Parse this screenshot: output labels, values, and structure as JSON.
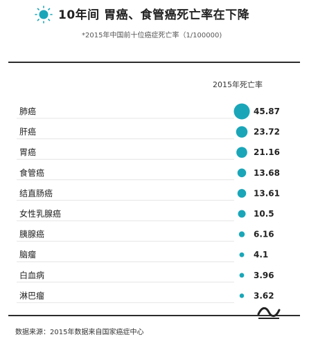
{
  "header": {
    "title": "10年间 胃癌、食管癌死亡率在下降",
    "subtitle": "*2015年中国前十位癌症死亡率（1/100000)"
  },
  "table": {
    "column_header": "2015年死亡率"
  },
  "footer": {
    "source": "数据来源：2015年数据来自国家癌症中心"
  },
  "colors": {
    "accent": "#1aa6b8",
    "rule": "#2b2b2b",
    "row_line": "#e4e4e4"
  },
  "chart_data": {
    "type": "bubble-table",
    "categories": [
      "肺癌",
      "肝癌",
      "胃癌",
      "食管癌",
      "结直肠癌",
      "女性乳腺癌",
      "胰腺癌",
      "脑瘤",
      "白血病",
      "淋巴瘤"
    ],
    "values": [
      45.87,
      23.72,
      21.16,
      13.68,
      13.61,
      10.5,
      6.16,
      4.1,
      3.96,
      3.62
    ],
    "value_labels": [
      "45.87",
      "23.72",
      "21.16",
      "13.68",
      "13.61",
      "10.5",
      "6.16",
      "4.1",
      "3.96",
      "3.62"
    ],
    "grid": false,
    "legend": "none"
  }
}
